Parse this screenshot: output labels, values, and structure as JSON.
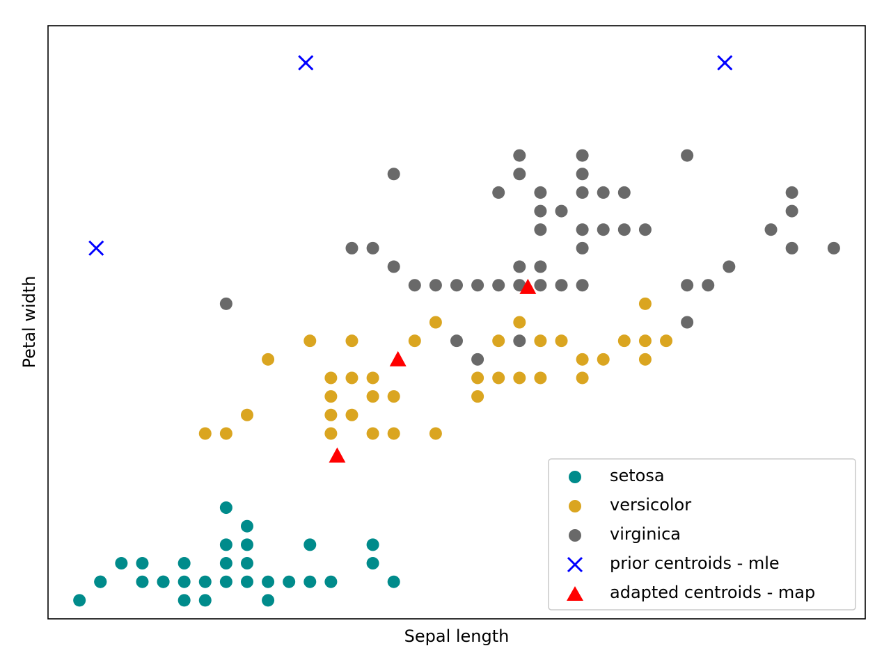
{
  "chart_data": {
    "type": "scatter",
    "title": "",
    "xlabel": "Sepal length",
    "ylabel": "Petal width",
    "xlim": [
      4.15,
      8.05
    ],
    "ylim": [
      0.0,
      3.2
    ],
    "xticks_visible": false,
    "yticks_visible": false,
    "grid": false,
    "legend": {
      "position": "lower-right"
    },
    "series": [
      {
        "name": "setosa",
        "marker": "circle",
        "color": "#008B8B",
        "points": [
          [
            4.3,
            0.1
          ],
          [
            4.4,
            0.2
          ],
          [
            4.4,
            0.2
          ],
          [
            4.5,
            0.3
          ],
          [
            4.6,
            0.2
          ],
          [
            4.6,
            0.3
          ],
          [
            4.7,
            0.2
          ],
          [
            4.8,
            0.2
          ],
          [
            4.8,
            0.3
          ],
          [
            4.8,
            0.1
          ],
          [
            4.9,
            0.2
          ],
          [
            5.0,
            0.2
          ],
          [
            5.0,
            0.4
          ],
          [
            5.0,
            0.3
          ],
          [
            5.0,
            0.6
          ],
          [
            5.1,
            0.2
          ],
          [
            5.1,
            0.4
          ],
          [
            5.1,
            0.3
          ],
          [
            5.1,
            0.5
          ],
          [
            5.2,
            0.2
          ],
          [
            5.2,
            0.1
          ],
          [
            5.3,
            0.2
          ],
          [
            5.4,
            0.2
          ],
          [
            5.4,
            0.4
          ],
          [
            5.5,
            0.2
          ],
          [
            5.7,
            0.3
          ],
          [
            5.7,
            0.4
          ],
          [
            5.8,
            0.2
          ],
          [
            4.9,
            0.1
          ],
          [
            4.7,
            0.2
          ]
        ]
      },
      {
        "name": "versicolor",
        "marker": "circle",
        "color": "#DAA520",
        "points": [
          [
            4.9,
            1.0
          ],
          [
            5.0,
            1.0
          ],
          [
            5.1,
            1.1
          ],
          [
            5.2,
            1.4
          ],
          [
            5.4,
            1.5
          ],
          [
            5.5,
            1.3
          ],
          [
            5.5,
            1.2
          ],
          [
            5.5,
            1.1
          ],
          [
            5.5,
            1.0
          ],
          [
            5.6,
            1.3
          ],
          [
            5.6,
            1.1
          ],
          [
            5.6,
            1.5
          ],
          [
            5.7,
            1.3
          ],
          [
            5.7,
            1.2
          ],
          [
            5.7,
            1.0
          ],
          [
            5.8,
            1.2
          ],
          [
            5.8,
            1.0
          ],
          [
            5.9,
            1.5
          ],
          [
            6.0,
            1.6
          ],
          [
            6.0,
            1.0
          ],
          [
            6.2,
            1.3
          ],
          [
            6.2,
            1.2
          ],
          [
            6.3,
            1.5
          ],
          [
            6.3,
            1.3
          ],
          [
            6.4,
            1.3
          ],
          [
            6.4,
            1.6
          ],
          [
            6.5,
            1.3
          ],
          [
            6.5,
            1.5
          ],
          [
            6.6,
            1.5
          ],
          [
            6.7,
            1.4
          ],
          [
            6.7,
            1.3
          ],
          [
            6.8,
            1.4
          ],
          [
            6.9,
            1.5
          ],
          [
            7.0,
            1.4
          ],
          [
            7.0,
            1.7
          ],
          [
            7.0,
            1.5
          ],
          [
            7.1,
            1.5
          ]
        ]
      },
      {
        "name": "virginica",
        "marker": "circle",
        "color": "#696969",
        "points": [
          [
            5.0,
            1.7
          ],
          [
            5.6,
            2.0
          ],
          [
            5.7,
            2.0
          ],
          [
            5.8,
            2.4
          ],
          [
            5.8,
            1.9
          ],
          [
            5.9,
            1.8
          ],
          [
            6.0,
            1.8
          ],
          [
            6.1,
            1.8
          ],
          [
            6.1,
            1.5
          ],
          [
            6.2,
            1.8
          ],
          [
            6.2,
            1.4
          ],
          [
            6.3,
            2.3
          ],
          [
            6.3,
            1.8
          ],
          [
            6.4,
            2.5
          ],
          [
            6.4,
            2.4
          ],
          [
            6.4,
            1.9
          ],
          [
            6.4,
            1.8
          ],
          [
            6.4,
            1.5
          ],
          [
            6.5,
            2.3
          ],
          [
            6.5,
            2.2
          ],
          [
            6.5,
            2.1
          ],
          [
            6.5,
            1.8
          ],
          [
            6.6,
            2.2
          ],
          [
            6.6,
            1.8
          ],
          [
            6.5,
            1.9
          ],
          [
            6.7,
            2.0
          ],
          [
            6.7,
            2.5
          ],
          [
            6.7,
            2.4
          ],
          [
            6.7,
            2.3
          ],
          [
            6.7,
            2.1
          ],
          [
            6.7,
            1.8
          ],
          [
            6.8,
            2.3
          ],
          [
            6.8,
            2.1
          ],
          [
            6.9,
            2.3
          ],
          [
            6.9,
            2.1
          ],
          [
            7.0,
            2.1
          ],
          [
            7.2,
            2.5
          ],
          [
            7.2,
            1.8
          ],
          [
            7.2,
            1.6
          ],
          [
            7.3,
            1.8
          ],
          [
            7.4,
            1.9
          ],
          [
            7.6,
            2.1
          ],
          [
            7.7,
            2.3
          ],
          [
            7.7,
            2.2
          ],
          [
            7.7,
            2.0
          ],
          [
            7.9,
            2.0
          ]
        ]
      },
      {
        "name": "prior centroids - mle",
        "marker": "x",
        "color": "#0000FF",
        "points": [
          [
            4.38,
            2.0
          ],
          [
            5.38,
            3.0
          ],
          [
            7.38,
            3.0
          ]
        ]
      },
      {
        "name": "adapted centroids - map",
        "marker": "triangle",
        "color": "#FF0000",
        "points": [
          [
            5.53,
            0.88
          ],
          [
            5.82,
            1.4
          ],
          [
            6.44,
            1.79
          ]
        ]
      }
    ]
  }
}
